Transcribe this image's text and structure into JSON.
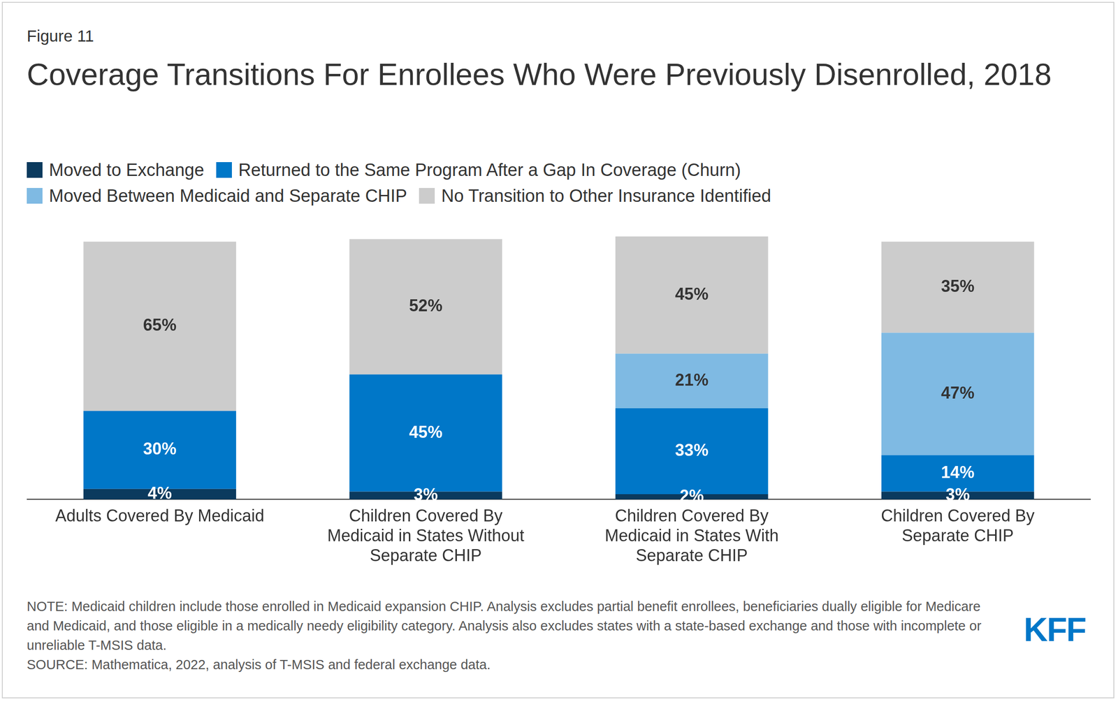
{
  "figure_label": "Figure 11",
  "chart_data": {
    "type": "bar",
    "title": "Coverage Transitions For Enrollees Who Were Previously Disenrolled, 2018",
    "categories": [
      "Adults Covered By Medicaid",
      "Children Covered By Medicaid in States Without Separate CHIP",
      "Children Covered By Medicaid in States With Separate CHIP",
      "Children Covered By Separate CHIP"
    ],
    "series": [
      {
        "name": "Moved to Exchange",
        "color": "#0b3a5e",
        "values": [
          4,
          3,
          2,
          3
        ],
        "value_labels": [
          "4%",
          "3%",
          "2%",
          "3%"
        ]
      },
      {
        "name": "Returned to the Same Program After a Gap In Coverage (Churn)",
        "color": "#0077c8",
        "values": [
          30,
          45,
          33,
          14
        ],
        "value_labels": [
          "30%",
          "45%",
          "33%",
          "14%"
        ]
      },
      {
        "name": "Moved Between Medicaid and Separate CHIP",
        "color": "#7fbae3",
        "values": [
          null,
          null,
          21,
          47
        ],
        "value_labels": [
          null,
          null,
          "21%",
          "47%"
        ]
      },
      {
        "name": "No Transition to Other Insurance Identified",
        "color": "#cccccc",
        "values": [
          65,
          52,
          45,
          35
        ],
        "value_labels": [
          "65%",
          "52%",
          "45%",
          "35%"
        ]
      }
    ],
    "stacked": true,
    "data_labels": true,
    "tick_labels": "x",
    "grid": false
  },
  "note": "NOTE: Medicaid children include those enrolled in Medicaid expansion CHIP. Analysis excludes partial benefit enrollees, beneficiaries dually eligible for Medicare and Medicaid, and those eligible in a medically needy eligibility category. Analysis also excludes states with a state-based exchange and those with incomplete or unreliable T-MSIS data.",
  "source": "SOURCE: Mathematica, 2022, analysis of T-MSIS and federal exchange data.",
  "logo": "KFF"
}
